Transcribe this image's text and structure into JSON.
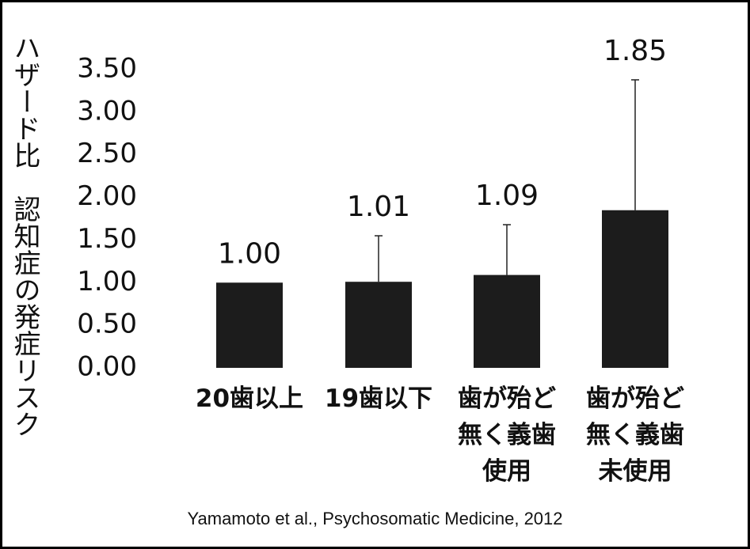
{
  "chart_data": {
    "type": "bar",
    "y_label": "ハザード比　認知症の発症リスク",
    "categories": [
      "20歯以上",
      "19歯以下",
      "歯が殆ど\n無く義歯\n使用",
      "歯が殆ど\n無く義歯\n未使用"
    ],
    "values": [
      1.0,
      1.01,
      1.09,
      1.85
    ],
    "value_labels": [
      "1.00",
      "1.01",
      "1.09",
      "1.85"
    ],
    "errors": [
      null,
      0.54,
      0.59,
      1.53
    ],
    "color": "#1c1c1c",
    "ylim": [
      0,
      3.5
    ],
    "yticks": [
      {
        "value": 0,
        "label": "0.00"
      },
      {
        "value": 0.5,
        "label": "0.50"
      },
      {
        "value": 1,
        "label": "1.00"
      },
      {
        "value": 1.5,
        "label": "1.50"
      },
      {
        "value": 2,
        "label": "2.00"
      },
      {
        "value": 2.5,
        "label": "2.50"
      },
      {
        "value": 3,
        "label": "3.00"
      },
      {
        "value": 3.5,
        "label": "3.50"
      }
    ],
    "grid": false,
    "source": "Yamamoto et al., Psychosomatic Medicine, 2012"
  }
}
